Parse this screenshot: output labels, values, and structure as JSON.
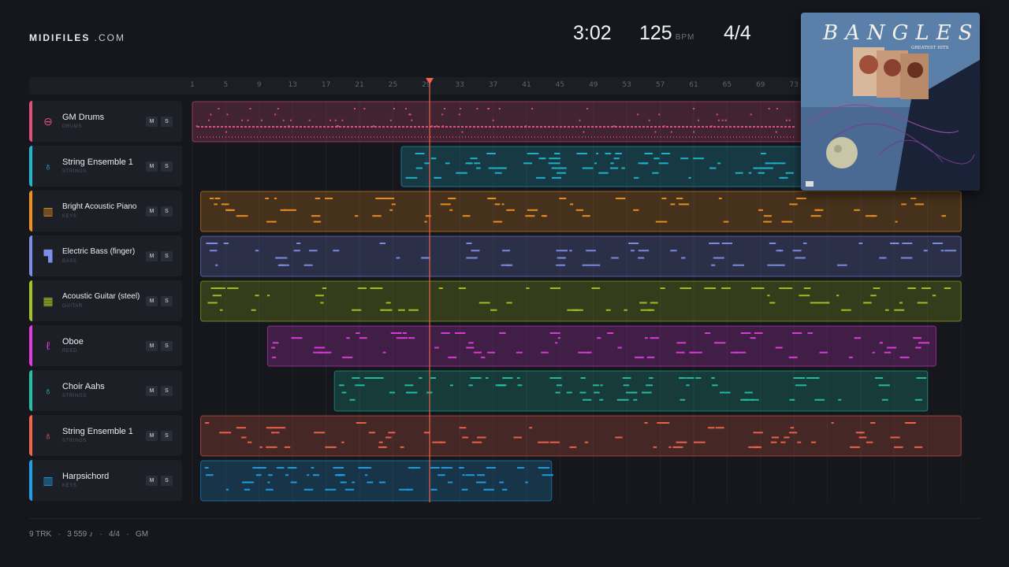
{
  "brand": {
    "bold": "MIDIFILES",
    "light": " .COM"
  },
  "transport": {
    "time": "3:02",
    "bpm": "125",
    "bpm_unit": "BPM",
    "signature": "4/4"
  },
  "ruler": {
    "bars": [
      "1",
      "5",
      "9",
      "13",
      "17",
      "21",
      "25",
      "29",
      "33",
      "37",
      "41",
      "45",
      "49",
      "53",
      "57",
      "61",
      "65",
      "69",
      "73"
    ]
  },
  "playhead": {
    "bar": 29.4
  },
  "tracks": [
    {
      "name": "GM Drums",
      "category": "DRUMS",
      "color": "#e0507e",
      "icon": "drum-icon",
      "glyph": "⊖",
      "mute": "M",
      "solo": "S"
    },
    {
      "name": "String Ensemble 1",
      "category": "STRINGS",
      "color": "#1fb6d0",
      "icon": "violin-icon",
      "glyph": "♁",
      "mute": "M",
      "solo": "S"
    },
    {
      "name": "Bright Acoustic Piano",
      "category": "KEYS",
      "color": "#f0901e",
      "icon": "piano-icon",
      "glyph": "▥",
      "mute": "M",
      "solo": "S"
    },
    {
      "name": "Electric Bass (finger)",
      "category": "BASS",
      "color": "#7b8fe8",
      "icon": "bass-icon",
      "glyph": "▜",
      "mute": "M",
      "solo": "S"
    },
    {
      "name": "Acoustic Guitar (steel)",
      "category": "GUITAR",
      "color": "#a6c21f",
      "icon": "guitar-icon",
      "glyph": "▦",
      "mute": "M",
      "solo": "S"
    },
    {
      "name": "Oboe",
      "category": "REED",
      "color": "#e03ce0",
      "icon": "oboe-icon",
      "glyph": "ℓ",
      "mute": "M",
      "solo": "S"
    },
    {
      "name": "Choir Aahs",
      "category": "STRINGS",
      "color": "#22c0a4",
      "icon": "choir-icon",
      "glyph": "♁",
      "mute": "M",
      "solo": "S"
    },
    {
      "name": "String Ensemble 1",
      "category": "STRINGS",
      "color": "#f0644c",
      "icon": "violin-icon",
      "glyph": "♁",
      "mute": "M",
      "solo": "S"
    },
    {
      "name": "Harpsichord",
      "category": "KEYS",
      "color": "#1ea0e8",
      "icon": "harpsichord-icon",
      "glyph": "▥",
      "mute": "M",
      "solo": "S"
    }
  ],
  "clips": [
    {
      "track": 0,
      "start": 1,
      "end": 74
    },
    {
      "track": 1,
      "start": 26,
      "end": 74
    },
    {
      "track": 2,
      "start": 2,
      "end": 93
    },
    {
      "track": 3,
      "start": 2,
      "end": 93
    },
    {
      "track": 4,
      "start": 2,
      "end": 93
    },
    {
      "track": 5,
      "start": 10,
      "end": 90
    },
    {
      "track": 6,
      "start": 18,
      "end": 89
    },
    {
      "track": 7,
      "start": 2,
      "end": 93
    },
    {
      "track": 8,
      "start": 2,
      "end": 44
    }
  ],
  "album": {
    "artist": "BANGLES",
    "title": "GREATEST HITS"
  },
  "footer": {
    "tracks": "9 TRK",
    "notes": "3 559 ♪",
    "signature": "4/4",
    "standard": "GM",
    "sep": "·"
  }
}
